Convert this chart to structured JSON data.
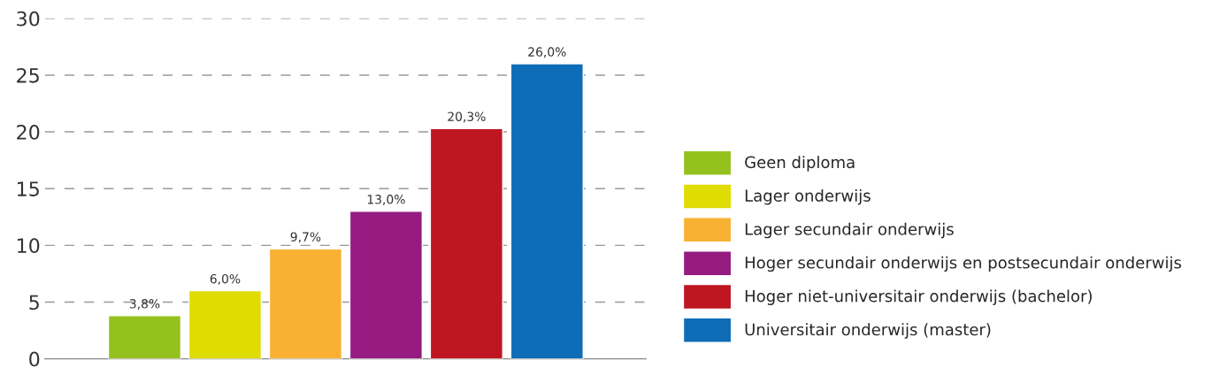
{
  "chart_data": {
    "type": "bar",
    "categories": [
      null,
      null,
      null,
      null,
      null,
      null
    ],
    "series": [
      {
        "name": "Geen diploma",
        "color": "#95c11f",
        "values": [
          3.8,
          null,
          null,
          null,
          null,
          null
        ],
        "value_labels": [
          "3,8%",
          null,
          null,
          null,
          null,
          null
        ]
      },
      {
        "name": "Lager onderwijs",
        "color": "#dedc00",
        "values": [
          null,
          6.0,
          null,
          null,
          null,
          null
        ],
        "value_labels": [
          null,
          "6,0%",
          null,
          null,
          null,
          null
        ]
      },
      {
        "name": "Lager secundair onderwijs",
        "color": "#f8b133",
        "values": [
          null,
          null,
          9.7,
          null,
          null,
          null
        ],
        "value_labels": [
          null,
          null,
          "9,7%",
          null,
          null,
          null
        ]
      },
      {
        "name": "Hoger secundair onderwijs en postsecundair onderwijs",
        "color": "#951b81",
        "values": [
          null,
          null,
          null,
          13.0,
          null,
          null
        ],
        "value_labels": [
          null,
          null,
          null,
          "13,0%",
          null,
          null
        ]
      },
      {
        "name": "Hoger niet-universitair onderwijs (bachelor)",
        "color": "#be1622",
        "values": [
          null,
          null,
          null,
          null,
          20.3,
          null
        ],
        "value_labels": [
          null,
          null,
          null,
          null,
          "20,3%",
          null
        ]
      },
      {
        "name": "Universitair onderwijs (master)",
        "color": "#0f6db7",
        "values": [
          null,
          null,
          null,
          null,
          null,
          26.0
        ],
        "value_labels": [
          null,
          null,
          null,
          null,
          null,
          "26,0%"
        ]
      }
    ],
    "ylim": [
      0,
      30
    ],
    "yticks": [
      0,
      5,
      10,
      15,
      20,
      25,
      30
    ],
    "grid": "y",
    "legend": "right",
    "tick_labels": "y"
  }
}
